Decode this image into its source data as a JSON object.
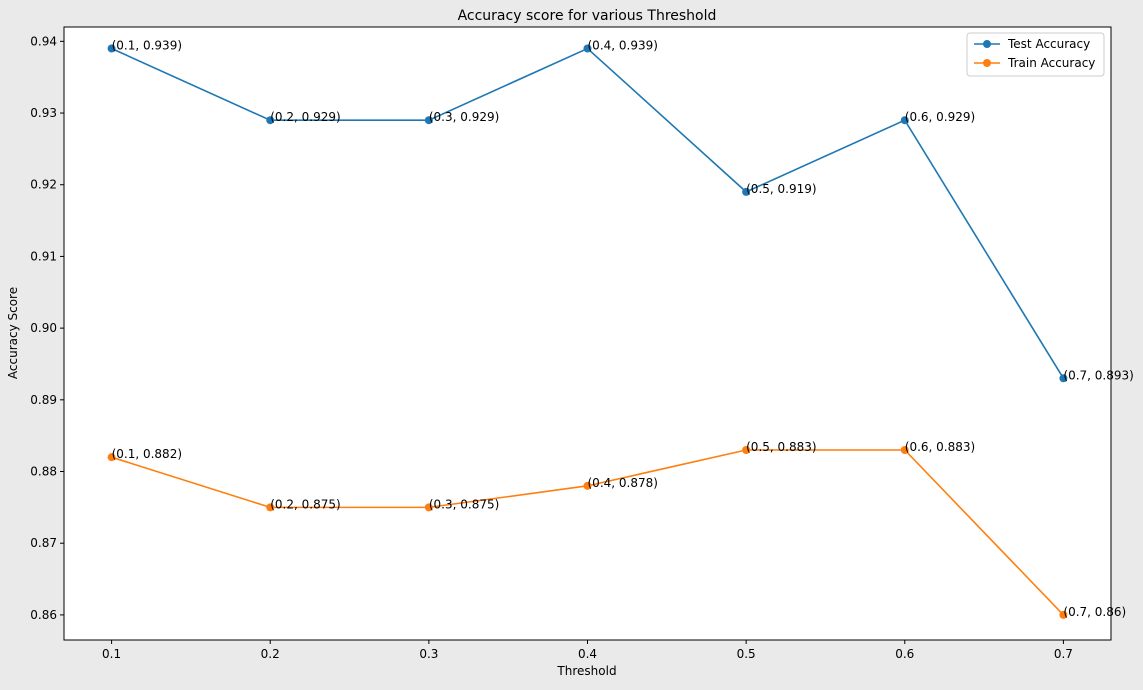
{
  "chart_data": {
    "type": "line",
    "title": "Accuracy score for various Threshold",
    "xlabel": "Threshold",
    "ylabel": "Accuracy Score",
    "x": [
      0.1,
      0.2,
      0.3,
      0.4,
      0.5,
      0.6,
      0.7
    ],
    "x_tick_labels": [
      "0.1",
      "0.2",
      "0.3",
      "0.4",
      "0.5",
      "0.6",
      "0.7"
    ],
    "xlim": [
      0.07,
      0.73
    ],
    "ylim": [
      0.8565,
      0.942
    ],
    "y_ticks": [
      0.86,
      0.87,
      0.88,
      0.89,
      0.9,
      0.91,
      0.92,
      0.93,
      0.94
    ],
    "y_tick_labels": [
      "0.86",
      "0.87",
      "0.88",
      "0.89",
      "0.90",
      "0.91",
      "0.92",
      "0.93",
      "0.94"
    ],
    "grid": false,
    "legend_position": "top-right",
    "series": [
      {
        "name": "Test Accuracy",
        "color": "#1f77b4",
        "values": [
          0.939,
          0.929,
          0.929,
          0.939,
          0.919,
          0.929,
          0.893
        ],
        "point_labels": [
          "(0.1, 0.939)",
          "(0.2, 0.929)",
          "(0.3, 0.929)",
          "(0.4, 0.939)",
          "(0.5, 0.919)",
          "(0.6, 0.929)",
          "(0.7, 0.893)"
        ]
      },
      {
        "name": "Train Accuracy",
        "color": "#ff7f0e",
        "values": [
          0.882,
          0.875,
          0.875,
          0.878,
          0.883,
          0.883,
          0.86
        ],
        "point_labels": [
          "(0.1, 0.882)",
          "(0.2, 0.875)",
          "(0.3, 0.875)",
          "(0.4, 0.878)",
          "(0.5, 0.883)",
          "(0.6, 0.883)",
          "(0.7, 0.86)"
        ]
      }
    ]
  }
}
